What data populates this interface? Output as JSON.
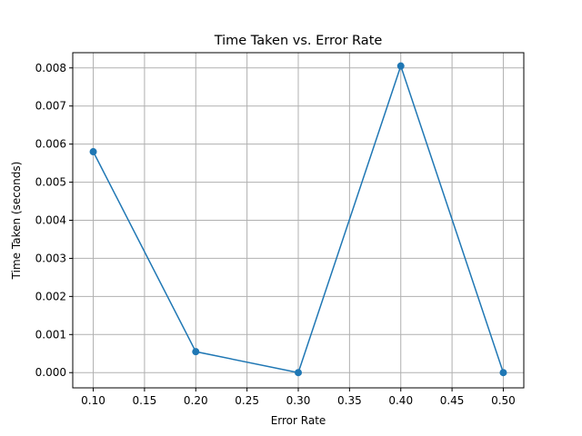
{
  "chart_data": {
    "type": "line",
    "title": "Time Taken vs. Error Rate",
    "xlabel": "Error Rate",
    "ylabel": "Time Taken (seconds)",
    "x": [
      0.1,
      0.2,
      0.3,
      0.4,
      0.5
    ],
    "series": [
      {
        "values": [
          0.0058,
          0.00055,
          0.0,
          0.00805,
          0.0
        ]
      }
    ],
    "xlim": [
      0.08,
      0.52
    ],
    "ylim": [
      -0.0004,
      0.0084
    ],
    "xticks": [
      "0.10",
      "0.15",
      "0.20",
      "0.25",
      "0.30",
      "0.35",
      "0.40",
      "0.45",
      "0.50"
    ],
    "yticks": [
      "0.000",
      "0.001",
      "0.002",
      "0.003",
      "0.004",
      "0.005",
      "0.006",
      "0.007",
      "0.008"
    ],
    "grid": true,
    "line_color": "#1f77b4",
    "marker": "circle"
  }
}
